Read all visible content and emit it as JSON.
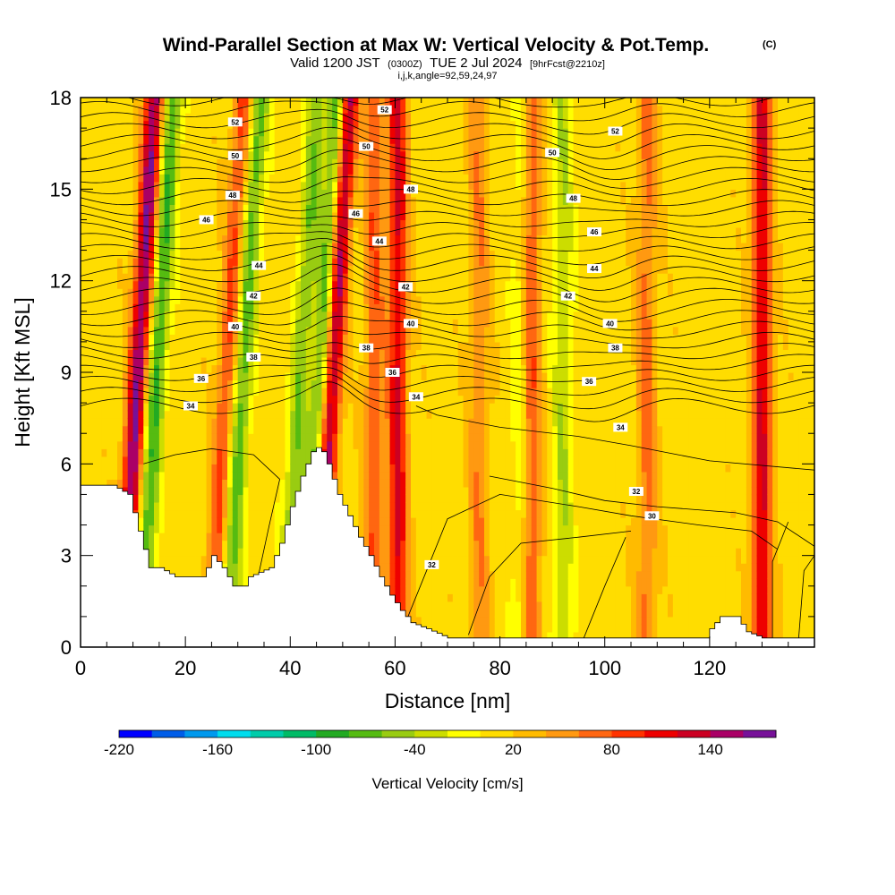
{
  "chart_data": {
    "type": "heatmap",
    "title": "Wind-Parallel Section at Max W: Vertical Velocity & Pot.Temp.",
    "title_mark": "(C)",
    "subtitle": {
      "valid": "Valid 1200 JST",
      "utc": "(0300Z)",
      "date": "TUE 2 Jul 2024",
      "fcst": "[9hrFcst@2210z]"
    },
    "indices": "i,j,k,angle=92,59,24,97",
    "xlabel": "Distance [nm]",
    "ylabel": "Height [Kft MSL]",
    "xlim": [
      0,
      140
    ],
    "ylim": [
      0,
      18
    ],
    "x_ticks": [
      "0",
      "20",
      "40",
      "60",
      "80",
      "100",
      "120"
    ],
    "y_ticks": [
      "0",
      "3",
      "6",
      "9",
      "12",
      "15",
      "18"
    ],
    "colorbar": {
      "label": "Vertical Velocity [cm/s]",
      "ticks": [
        "-220",
        "-160",
        "-100",
        "-40",
        "20",
        "80",
        "140"
      ],
      "min": -220,
      "max": 180,
      "step": 20,
      "colors": [
        "#0000ff",
        "#005de8",
        "#0099ee",
        "#00ddee",
        "#00ccaa",
        "#00bb66",
        "#22aa22",
        "#55bb11",
        "#99cc11",
        "#ccdd00",
        "#ffff00",
        "#ffdd00",
        "#ffbb00",
        "#ff9911",
        "#ff6611",
        "#ff3300",
        "#ee0000",
        "#cc0022",
        "#aa0066",
        "#771199"
      ]
    },
    "background_w": 12,
    "updrafts": [
      {
        "x": 11,
        "w": 150
      },
      {
        "x": 28,
        "w": 75
      },
      {
        "x": 48,
        "w": 150
      },
      {
        "x": 56,
        "w": 65
      },
      {
        "x": 60.5,
        "w": 110
      },
      {
        "x": 76,
        "w": 45
      },
      {
        "x": 86,
        "w": 70
      },
      {
        "x": 108,
        "w": 55
      },
      {
        "x": 130,
        "w": 110
      }
    ],
    "downdrafts": [
      {
        "x": 14.5,
        "w": -95
      },
      {
        "x": 31,
        "w": -85
      },
      {
        "x": 42,
        "w": -70
      },
      {
        "x": 46,
        "w": -100
      },
      {
        "x": 92,
        "w": -50
      },
      {
        "x": 84,
        "w": -30
      }
    ],
    "terrain": [
      {
        "x": 0,
        "h": 5.3
      },
      {
        "x": 6,
        "h": 5.3
      },
      {
        "x": 9,
        "h": 5.0
      },
      {
        "x": 12,
        "h": 3.2
      },
      {
        "x": 13,
        "h": 2.6
      },
      {
        "x": 15,
        "h": 2.6
      },
      {
        "x": 18,
        "h": 2.3
      },
      {
        "x": 23,
        "h": 2.3
      },
      {
        "x": 24,
        "h": 2.6
      },
      {
        "x": 25,
        "h": 3.0
      },
      {
        "x": 27,
        "h": 2.6
      },
      {
        "x": 29,
        "h": 2.0
      },
      {
        "x": 31,
        "h": 2.0
      },
      {
        "x": 32,
        "h": 2.3
      },
      {
        "x": 36,
        "h": 2.6
      },
      {
        "x": 38,
        "h": 3.4
      },
      {
        "x": 40,
        "h": 4.6
      },
      {
        "x": 42,
        "h": 5.6
      },
      {
        "x": 44,
        "h": 6.4
      },
      {
        "x": 45.5,
        "h": 6.6
      },
      {
        "x": 47,
        "h": 6.0
      },
      {
        "x": 49,
        "h": 5.0
      },
      {
        "x": 51,
        "h": 4.3
      },
      {
        "x": 53,
        "h": 3.6
      },
      {
        "x": 55,
        "h": 3.0
      },
      {
        "x": 57,
        "h": 2.3
      },
      {
        "x": 59,
        "h": 1.7
      },
      {
        "x": 61,
        "h": 1.2
      },
      {
        "x": 63,
        "h": 0.8
      },
      {
        "x": 66,
        "h": 0.6
      },
      {
        "x": 70,
        "h": 0.3
      },
      {
        "x": 80,
        "h": 0.3
      },
      {
        "x": 100,
        "h": 0.3
      },
      {
        "x": 119,
        "h": 0.3
      },
      {
        "x": 120,
        "h": 0.6
      },
      {
        "x": 122,
        "h": 1.0
      },
      {
        "x": 125,
        "h": 1.0
      },
      {
        "x": 127,
        "h": 0.5
      },
      {
        "x": 130,
        "h": 0.3
      },
      {
        "x": 140,
        "h": 0.3
      }
    ],
    "theta_contours": {
      "interval": 1,
      "labeled": [
        {
          "value": "52",
          "x": 29.5,
          "y": 17.2
        },
        {
          "value": "50",
          "x": 29.5,
          "y": 16.1
        },
        {
          "value": "48",
          "x": 29,
          "y": 14.8
        },
        {
          "value": "46",
          "x": 24,
          "y": 14.0
        },
        {
          "value": "44",
          "x": 34,
          "y": 12.5
        },
        {
          "value": "42",
          "x": 33,
          "y": 11.5
        },
        {
          "value": "40",
          "x": 29.5,
          "y": 10.5
        },
        {
          "value": "38",
          "x": 33,
          "y": 9.5
        },
        {
          "value": "36",
          "x": 23,
          "y": 8.8
        },
        {
          "value": "34",
          "x": 21,
          "y": 7.9
        },
        {
          "value": "52",
          "x": 58,
          "y": 17.6
        },
        {
          "value": "50",
          "x": 54.5,
          "y": 16.4
        },
        {
          "value": "48",
          "x": 63,
          "y": 15.0
        },
        {
          "value": "46",
          "x": 52.5,
          "y": 14.2
        },
        {
          "value": "44",
          "x": 57,
          "y": 13.3
        },
        {
          "value": "42",
          "x": 62,
          "y": 11.8
        },
        {
          "value": "40",
          "x": 63,
          "y": 10.6
        },
        {
          "value": "38",
          "x": 54.5,
          "y": 9.8
        },
        {
          "value": "36",
          "x": 59.5,
          "y": 9.0
        },
        {
          "value": "34",
          "x": 64,
          "y": 8.2
        },
        {
          "value": "52",
          "x": 102,
          "y": 16.9
        },
        {
          "value": "50",
          "x": 90,
          "y": 16.2
        },
        {
          "value": "48",
          "x": 94,
          "y": 14.7
        },
        {
          "value": "46",
          "x": 98,
          "y": 13.6
        },
        {
          "value": "44",
          "x": 98,
          "y": 12.4
        },
        {
          "value": "42",
          "x": 93,
          "y": 11.5
        },
        {
          "value": "40",
          "x": 101,
          "y": 10.6
        },
        {
          "value": "38",
          "x": 102,
          "y": 9.8
        },
        {
          "value": "36",
          "x": 97,
          "y": 8.7
        },
        {
          "value": "34",
          "x": 103,
          "y": 7.2
        },
        {
          "value": "32",
          "x": 106,
          "y": 5.1
        },
        {
          "value": "30",
          "x": 109,
          "y": 4.3
        },
        {
          "value": "32",
          "x": 67,
          "y": 2.7
        }
      ]
    }
  }
}
